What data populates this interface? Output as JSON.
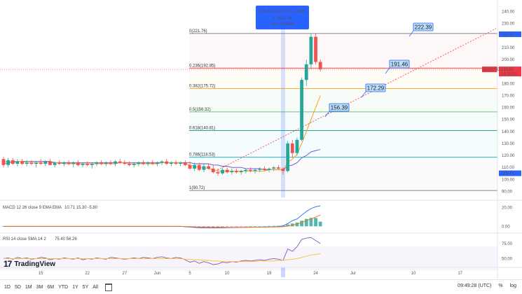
{
  "timeframes": [
    "1D",
    "5D",
    "1M",
    "3M",
    "6M",
    "YTD",
    "1Y",
    "5Y",
    "All"
  ],
  "clock": "09:49:28 (UTC)",
  "percent_label": "%",
  "log_label": "log",
  "logo_text": "TradingView",
  "colors": {
    "up": "#26a69a",
    "down": "#ef5350",
    "accent": "#2962ff",
    "macd": "#2962ff",
    "signal": "#ff6d00",
    "rsi": "#7e57c2",
    "callout_bg": "#bbdefb",
    "callout_border": "#2962ff",
    "price_line": "#f23645"
  },
  "chart_data": [
    {
      "type": "candlestick",
      "x_tick_labels": [
        "15",
        "22",
        "27",
        "Jun",
        "5",
        "10",
        "19",
        "24",
        "Jul",
        "10",
        "17"
      ],
      "price_axis_ticks": [
        "240.00",
        "230.00",
        "220.00",
        "210.00",
        "200.00",
        "190.00",
        "180.00",
        "170.00",
        "160.00",
        "150.00",
        "140.00",
        "130.00",
        "120.00",
        "110.00",
        "100.00",
        "90.00"
      ],
      "ylim": [
        85,
        245
      ],
      "tooltip": {
        "line1": "116.46 (110.780) , 11646",
        "line2": "1 bars, 1d",
        "line3": "Vol 116.5488"
      },
      "current_price_tag": {
        "label": "BCHUSD",
        "value": "191.80",
        "sub": "04:10:32"
      },
      "top_price_tag": "221.10",
      "low_price_tag": "105.13",
      "fib_levels": [
        {
          "ratio": "0",
          "label": "0(221.76)",
          "price": 221.76,
          "color": "#787b86"
        },
        {
          "ratio": "0.236",
          "label": "0.236(192.85)",
          "price": 192.85,
          "color": "#f23645"
        },
        {
          "ratio": "0.382",
          "label": "0.382(175.72)",
          "price": 175.72,
          "color": "#ff9800"
        },
        {
          "ratio": "0.5",
          "label": "0.5(156.32)",
          "price": 156.32,
          "color": "#4caf50"
        },
        {
          "ratio": "0.618",
          "label": "0.618(140.81)",
          "price": 140.81,
          "color": "#089981"
        },
        {
          "ratio": "0.786",
          "label": "0.786(118.53)",
          "price": 118.53,
          "color": "#00bcd4"
        },
        {
          "ratio": "1",
          "label": "1(90.72)",
          "price": 90.72,
          "color": "#787b86"
        }
      ],
      "callouts": [
        "222.39",
        "191.46",
        "172.29",
        "156.39"
      ],
      "candles": [
        {
          "o": 117,
          "h": 119,
          "l": 110,
          "c": 112
        },
        {
          "o": 112,
          "h": 118,
          "l": 110,
          "c": 116
        },
        {
          "o": 116,
          "h": 118,
          "l": 112,
          "c": 113
        },
        {
          "o": 113,
          "h": 117,
          "l": 111,
          "c": 115
        },
        {
          "o": 115,
          "h": 117,
          "l": 112,
          "c": 113
        },
        {
          "o": 113,
          "h": 116,
          "l": 111,
          "c": 114
        },
        {
          "o": 114,
          "h": 116,
          "l": 112,
          "c": 113
        },
        {
          "o": 113,
          "h": 115,
          "l": 110,
          "c": 114
        },
        {
          "o": 114,
          "h": 117,
          "l": 112,
          "c": 113
        },
        {
          "o": 113,
          "h": 116,
          "l": 111,
          "c": 115
        },
        {
          "o": 115,
          "h": 117,
          "l": 112,
          "c": 112
        },
        {
          "o": 112,
          "h": 115,
          "l": 110,
          "c": 114
        },
        {
          "o": 114,
          "h": 116,
          "l": 112,
          "c": 113
        },
        {
          "o": 113,
          "h": 115,
          "l": 111,
          "c": 114
        },
        {
          "o": 114,
          "h": 116,
          "l": 112,
          "c": 113
        },
        {
          "o": 113,
          "h": 115,
          "l": 110,
          "c": 114
        },
        {
          "o": 114,
          "h": 116,
          "l": 111,
          "c": 112
        },
        {
          "o": 112,
          "h": 114,
          "l": 110,
          "c": 113
        },
        {
          "o": 113,
          "h": 115,
          "l": 111,
          "c": 112
        },
        {
          "o": 112,
          "h": 114,
          "l": 109,
          "c": 113
        },
        {
          "o": 113,
          "h": 115,
          "l": 111,
          "c": 114
        },
        {
          "o": 114,
          "h": 116,
          "l": 112,
          "c": 113
        },
        {
          "o": 113,
          "h": 115,
          "l": 111,
          "c": 114
        },
        {
          "o": 114,
          "h": 116,
          "l": 112,
          "c": 113
        },
        {
          "o": 113,
          "h": 116,
          "l": 111,
          "c": 115
        },
        {
          "o": 115,
          "h": 117,
          "l": 113,
          "c": 114
        },
        {
          "o": 114,
          "h": 116,
          "l": 112,
          "c": 113
        },
        {
          "o": 113,
          "h": 115,
          "l": 111,
          "c": 112
        },
        {
          "o": 112,
          "h": 114,
          "l": 110,
          "c": 113
        },
        {
          "o": 113,
          "h": 115,
          "l": 111,
          "c": 114
        },
        {
          "o": 114,
          "h": 116,
          "l": 112,
          "c": 113
        },
        {
          "o": 113,
          "h": 115,
          "l": 111,
          "c": 114
        },
        {
          "o": 114,
          "h": 116,
          "l": 112,
          "c": 113
        },
        {
          "o": 113,
          "h": 115,
          "l": 111,
          "c": 114
        },
        {
          "o": 114,
          "h": 116,
          "l": 112,
          "c": 115
        },
        {
          "o": 115,
          "h": 117,
          "l": 112,
          "c": 113
        },
        {
          "o": 113,
          "h": 115,
          "l": 111,
          "c": 114
        },
        {
          "o": 114,
          "h": 116,
          "l": 112,
          "c": 113
        },
        {
          "o": 113,
          "h": 115,
          "l": 111,
          "c": 114
        },
        {
          "o": 114,
          "h": 116,
          "l": 111,
          "c": 112
        },
        {
          "o": 112,
          "h": 115,
          "l": 108,
          "c": 109
        },
        {
          "o": 109,
          "h": 114,
          "l": 107,
          "c": 112
        },
        {
          "o": 112,
          "h": 114,
          "l": 107,
          "c": 108
        },
        {
          "o": 108,
          "h": 113,
          "l": 106,
          "c": 111
        },
        {
          "o": 111,
          "h": 113,
          "l": 108,
          "c": 109
        },
        {
          "o": 109,
          "h": 112,
          "l": 105,
          "c": 106
        },
        {
          "o": 106,
          "h": 109,
          "l": 103,
          "c": 105
        },
        {
          "o": 105,
          "h": 110,
          "l": 104,
          "c": 108
        },
        {
          "o": 108,
          "h": 110,
          "l": 105,
          "c": 106
        },
        {
          "o": 106,
          "h": 109,
          "l": 104,
          "c": 107
        },
        {
          "o": 107,
          "h": 109,
          "l": 105,
          "c": 106
        },
        {
          "o": 106,
          "h": 108,
          "l": 104,
          "c": 107
        },
        {
          "o": 107,
          "h": 109,
          "l": 105,
          "c": 108
        },
        {
          "o": 108,
          "h": 110,
          "l": 106,
          "c": 107
        },
        {
          "o": 107,
          "h": 109,
          "l": 105,
          "c": 108
        },
        {
          "o": 108,
          "h": 110,
          "l": 106,
          "c": 109
        },
        {
          "o": 109,
          "h": 111,
          "l": 107,
          "c": 108
        },
        {
          "o": 108,
          "h": 110,
          "l": 106,
          "c": 109
        },
        {
          "o": 109,
          "h": 111,
          "l": 107,
          "c": 110
        },
        {
          "o": 110,
          "h": 112,
          "l": 108,
          "c": 109
        },
        {
          "o": 109,
          "h": 110,
          "l": 104,
          "c": 107
        },
        {
          "o": 107,
          "h": 132,
          "l": 106,
          "c": 130
        },
        {
          "o": 130,
          "h": 133,
          "l": 118,
          "c": 122
        },
        {
          "o": 122,
          "h": 135,
          "l": 120,
          "c": 133
        },
        {
          "o": 133,
          "h": 185,
          "l": 132,
          "c": 183
        },
        {
          "o": 183,
          "h": 200,
          "l": 178,
          "c": 196
        },
        {
          "o": 196,
          "h": 222,
          "l": 192,
          "c": 219
        },
        {
          "o": 219,
          "h": 222,
          "l": 196,
          "c": 198
        },
        {
          "o": 198,
          "h": 200,
          "l": 190,
          "c": 192
        }
      ],
      "ma_long": [
        113,
        114,
        114,
        115,
        115,
        115,
        115,
        115,
        115,
        115,
        115,
        114,
        114,
        114,
        114,
        114,
        114,
        114,
        114,
        114,
        114,
        114,
        114,
        114,
        114,
        114,
        114,
        114,
        114,
        114,
        114,
        114,
        114,
        114,
        114,
        114,
        114,
        114,
        114,
        114,
        114,
        113,
        113,
        113,
        113,
        112,
        112,
        111,
        111,
        110,
        110,
        110,
        109,
        109,
        109,
        109,
        108,
        108,
        108,
        108,
        108,
        111,
        112,
        114,
        118,
        120,
        123,
        124,
        125
      ],
      "ma_short": [
        115,
        115,
        115,
        115,
        115,
        114,
        114,
        114,
        114,
        114,
        114,
        114,
        114,
        113,
        113,
        113,
        113,
        113,
        113,
        113,
        113,
        113,
        113,
        113,
        113,
        114,
        114,
        113,
        113,
        113,
        113,
        113,
        113,
        113,
        114,
        114,
        114,
        114,
        114,
        113,
        112,
        111,
        110,
        110,
        109,
        108,
        107,
        107,
        107,
        107,
        107,
        107,
        107,
        107,
        107,
        107,
        107,
        108,
        108,
        108,
        108,
        114,
        117,
        121,
        130,
        140,
        150,
        160,
        170
      ],
      "forecast_line": {
        "from": 108,
        "to": 222.39
      }
    },
    {
      "type": "bar",
      "title": "MACD 12 26 close 9 EMA EMA",
      "values_text": "10.71  15.30  -5.80",
      "axis_ticks": [
        "20.00",
        "0.00"
      ],
      "ylim": [
        -5,
        25
      ],
      "histogram": [
        0,
        0,
        0,
        0,
        0,
        0,
        0,
        0,
        0,
        0,
        0,
        0,
        0,
        0,
        0,
        0,
        0,
        0,
        0,
        0,
        0,
        0,
        0,
        0,
        0,
        0,
        0,
        0,
        0,
        0,
        0,
        0,
        0,
        0,
        0,
        0,
        0,
        0,
        0,
        -0.2,
        -0.5,
        -0.8,
        -1,
        -1.1,
        -1,
        -0.9,
        -0.8,
        -0.6,
        -0.5,
        -0.4,
        -0.3,
        -0.2,
        -0.1,
        0,
        0.1,
        0.2,
        0.3,
        0.4,
        0.5,
        0.6,
        0.8,
        2,
        3,
        4,
        6,
        8,
        9,
        9,
        5
      ],
      "macd_line": [
        0,
        0,
        0,
        0,
        0,
        0,
        0,
        0,
        0,
        0,
        0,
        0,
        0,
        0,
        0,
        0,
        0,
        0,
        0,
        0,
        0,
        0,
        0,
        0,
        0,
        0,
        0,
        0,
        0,
        0,
        0,
        0,
        0,
        0,
        0,
        0,
        0,
        0,
        0,
        -0.4,
        -0.8,
        -1.2,
        -1.5,
        -1.7,
        -1.8,
        -1.8,
        -1.7,
        -1.6,
        -1.5,
        -1.4,
        -1.3,
        -1.2,
        -1.1,
        -1,
        -0.9,
        -0.8,
        -0.7,
        -0.6,
        -0.5,
        -0.3,
        0.5,
        3,
        6,
        8,
        12,
        16,
        19,
        21,
        22
      ],
      "signal_line": [
        0,
        0,
        0,
        0,
        0,
        0,
        0,
        0,
        0,
        0,
        0,
        0,
        0,
        0,
        0,
        0,
        0,
        0,
        0,
        0,
        0,
        0,
        0,
        0,
        0,
        0,
        0,
        0,
        0,
        0,
        0,
        0,
        0,
        0,
        0,
        0,
        0,
        0,
        0,
        -0.2,
        -0.4,
        -0.6,
        -0.8,
        -0.9,
        -1,
        -1.1,
        -1.1,
        -1.1,
        -1.1,
        -1.1,
        -1,
        -1,
        -1,
        -0.9,
        -0.9,
        -0.8,
        -0.8,
        -0.7,
        -0.7,
        -0.6,
        -0.4,
        0.2,
        1.2,
        2.4,
        4,
        6,
        8,
        10,
        12
      ]
    },
    {
      "type": "line",
      "title": "RSI 14 close SMA 14 2",
      "values_text": "75.40  56.26",
      "axis_ticks": [
        "75.00",
        "50.00"
      ],
      "ylim": [
        40,
        90
      ],
      "rsi": [
        50,
        51,
        49,
        52,
        50,
        51,
        49,
        50,
        52,
        51,
        48,
        50,
        49,
        51,
        50,
        49,
        51,
        48,
        50,
        49,
        51,
        50,
        49,
        52,
        51,
        50,
        49,
        50,
        51,
        50,
        52,
        51,
        50,
        52,
        53,
        51,
        50,
        52,
        51,
        48,
        44,
        46,
        42,
        45,
        43,
        40,
        41,
        44,
        43,
        45,
        44,
        46,
        47,
        46,
        47,
        48,
        47,
        49,
        50,
        49,
        47,
        66,
        62,
        70,
        82,
        84,
        85,
        80,
        75
      ],
      "rsi_ma": [
        50,
        50,
        50,
        50,
        50,
        50,
        50,
        50,
        50,
        50,
        50,
        50,
        50,
        50,
        50,
        50,
        50,
        50,
        50,
        50,
        50,
        50,
        50,
        50,
        50,
        50,
        50,
        50,
        50,
        50,
        50,
        50,
        50,
        50,
        50,
        50,
        50,
        50,
        50,
        49,
        49,
        48,
        48,
        47,
        47,
        46,
        46,
        45,
        45,
        45,
        45,
        45,
        45,
        45,
        45,
        46,
        46,
        46,
        46,
        47,
        47,
        48,
        49,
        50,
        52,
        54,
        56,
        57,
        58
      ]
    }
  ]
}
